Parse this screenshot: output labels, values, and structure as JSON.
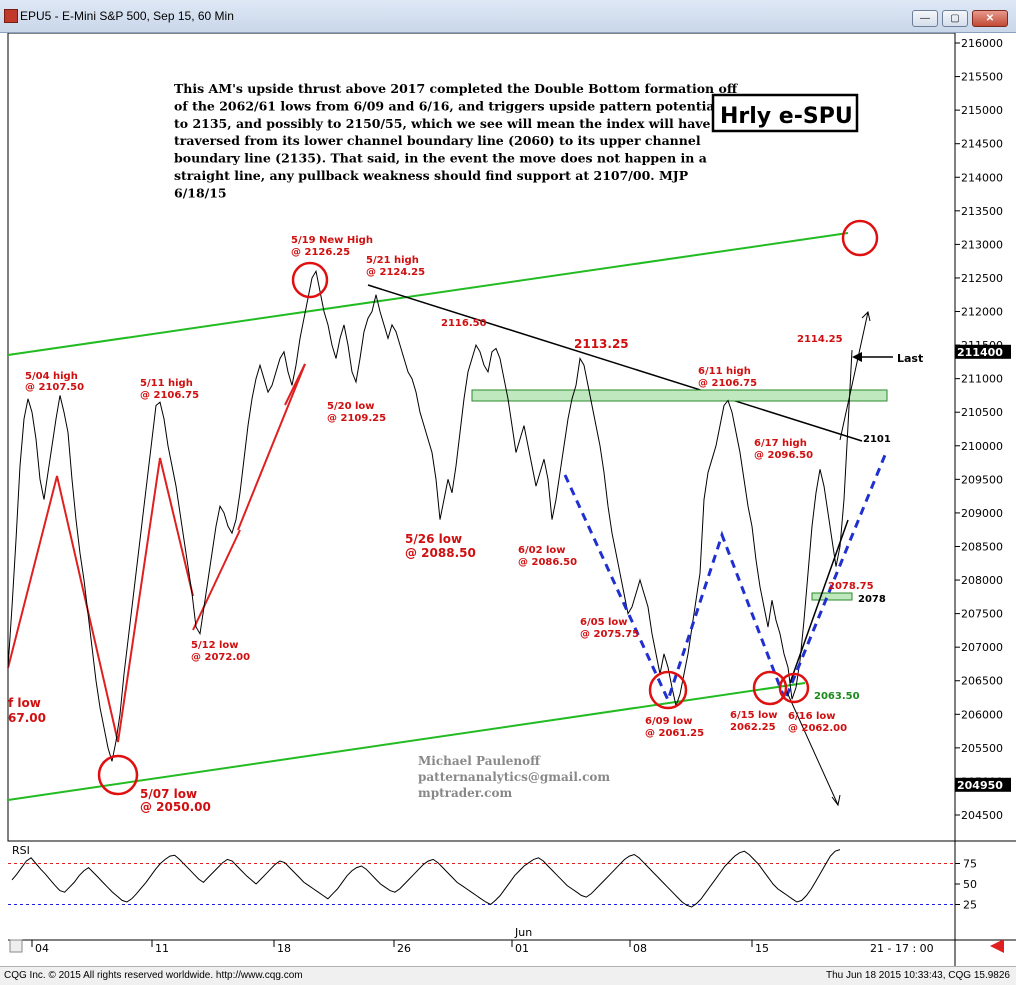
{
  "window": {
    "title": "EPU5 - E-Mini S&P 500, Sep 15, 60 Min",
    "minimize_icon": "minimize-icon",
    "restore_icon": "restore-icon",
    "close_icon": "close-icon"
  },
  "chart_data": {
    "type": "line",
    "title": "Hrly e-SPU",
    "xlabel": "",
    "ylabel": "",
    "ylim": [
      204100,
      216200
    ],
    "grid": false,
    "price_ticks": [
      "216000",
      "215500",
      "215000",
      "214500",
      "214000",
      "213500",
      "213000",
      "212500",
      "212000",
      "211500",
      "211000",
      "210500",
      "210000",
      "209500",
      "209000",
      "208500",
      "208000",
      "207500",
      "207000",
      "206500",
      "206000",
      "205500",
      "205000",
      "204500"
    ],
    "last_price_label": "211400",
    "left_price_label": "204950",
    "x_ticks": [
      "04",
      "11",
      "18",
      "26",
      "01",
      "08",
      "15"
    ],
    "x_month_label": "Jun",
    "x_right_label": "21 - 17 : 00",
    "series": [
      {
        "points": [
          [
            0,
            206700
          ],
          [
            4,
            207600
          ],
          [
            8,
            208600
          ],
          [
            12,
            209700
          ],
          [
            16,
            210400
          ],
          [
            20,
            210700
          ],
          [
            24,
            210500
          ],
          [
            28,
            210100
          ],
          [
            32,
            209500
          ],
          [
            36,
            209200
          ],
          [
            40,
            209600
          ],
          [
            44,
            210000
          ],
          [
            48,
            210400
          ],
          [
            52,
            210750
          ],
          [
            56,
            210500
          ],
          [
            60,
            210200
          ],
          [
            64,
            209500
          ],
          [
            68,
            208900
          ],
          [
            72,
            208400
          ],
          [
            76,
            208000
          ],
          [
            80,
            207500
          ],
          [
            84,
            207000
          ],
          [
            88,
            206500
          ],
          [
            92,
            206100
          ],
          [
            96,
            205800
          ],
          [
            100,
            205500
          ],
          [
            104,
            205300
          ],
          [
            108,
            205600
          ],
          [
            112,
            206000
          ],
          [
            116,
            206600
          ],
          [
            120,
            207100
          ],
          [
            124,
            207600
          ],
          [
            128,
            208100
          ],
          [
            132,
            208600
          ],
          [
            136,
            209100
          ],
          [
            140,
            209600
          ],
          [
            144,
            210100
          ],
          [
            148,
            210600
          ],
          [
            152,
            210650
          ],
          [
            156,
            210400
          ],
          [
            160,
            210000
          ],
          [
            164,
            209700
          ],
          [
            168,
            209400
          ],
          [
            172,
            209000
          ],
          [
            176,
            208600
          ],
          [
            180,
            208200
          ],
          [
            184,
            207800
          ],
          [
            188,
            207300
          ],
          [
            192,
            207200
          ],
          [
            196,
            207600
          ],
          [
            200,
            208000
          ],
          [
            204,
            208400
          ],
          [
            208,
            208800
          ],
          [
            212,
            209100
          ],
          [
            216,
            209000
          ],
          [
            220,
            208800
          ],
          [
            224,
            208700
          ],
          [
            228,
            208900
          ],
          [
            232,
            209300
          ],
          [
            236,
            209800
          ],
          [
            240,
            210300
          ],
          [
            244,
            210700
          ],
          [
            248,
            211000
          ],
          [
            252,
            211200
          ],
          [
            256,
            211000
          ],
          [
            260,
            210800
          ],
          [
            264,
            210900
          ],
          [
            268,
            211100
          ],
          [
            272,
            211300
          ],
          [
            276,
            211400
          ],
          [
            280,
            211100
          ],
          [
            284,
            210900
          ],
          [
            288,
            211200
          ],
          [
            292,
            211600
          ],
          [
            296,
            211900
          ],
          [
            300,
            212200
          ],
          [
            304,
            212500
          ],
          [
            308,
            212600
          ],
          [
            312,
            212300
          ],
          [
            316,
            212000
          ],
          [
            320,
            211800
          ],
          [
            324,
            211500
          ],
          [
            328,
            211300
          ],
          [
            332,
            211600
          ],
          [
            336,
            211800
          ],
          [
            340,
            211500
          ],
          [
            344,
            211100
          ],
          [
            348,
            210950
          ],
          [
            352,
            211300
          ],
          [
            356,
            211700
          ],
          [
            360,
            211900
          ],
          [
            364,
            212000
          ],
          [
            368,
            212250
          ],
          [
            372,
            212000
          ],
          [
            376,
            211800
          ],
          [
            380,
            211600
          ],
          [
            384,
            211800
          ],
          [
            388,
            211700
          ],
          [
            392,
            211500
          ],
          [
            396,
            211300
          ],
          [
            400,
            211100
          ],
          [
            404,
            211000
          ],
          [
            408,
            210800
          ],
          [
            412,
            210500
          ],
          [
            416,
            210300
          ],
          [
            420,
            210100
          ],
          [
            424,
            209900
          ],
          [
            428,
            209500
          ],
          [
            432,
            208900
          ],
          [
            436,
            209200
          ],
          [
            440,
            209500
          ],
          [
            444,
            209300
          ],
          [
            448,
            209700
          ],
          [
            452,
            210200
          ],
          [
            456,
            210700
          ],
          [
            460,
            211100
          ],
          [
            464,
            211300
          ],
          [
            468,
            211500
          ],
          [
            472,
            211400
          ],
          [
            476,
            211200
          ],
          [
            480,
            211100
          ],
          [
            484,
            211400
          ],
          [
            488,
            211450
          ],
          [
            492,
            211300
          ],
          [
            496,
            211000
          ],
          [
            500,
            210700
          ],
          [
            504,
            210300
          ],
          [
            508,
            209900
          ],
          [
            512,
            210100
          ],
          [
            516,
            210300
          ],
          [
            520,
            210000
          ],
          [
            524,
            209700
          ],
          [
            528,
            209400
          ],
          [
            532,
            209600
          ],
          [
            536,
            209800
          ],
          [
            540,
            209500
          ],
          [
            544,
            208900
          ],
          [
            548,
            209200
          ],
          [
            552,
            209600
          ],
          [
            556,
            210000
          ],
          [
            560,
            210400
          ],
          [
            564,
            210700
          ],
          [
            568,
            210900
          ],
          [
            572,
            211300
          ],
          [
            576,
            211200
          ],
          [
            580,
            210900
          ],
          [
            584,
            210600
          ],
          [
            588,
            210300
          ],
          [
            592,
            210000
          ],
          [
            596,
            209600
          ],
          [
            600,
            209100
          ],
          [
            604,
            208700
          ],
          [
            608,
            208400
          ],
          [
            612,
            208100
          ],
          [
            616,
            207800
          ],
          [
            620,
            207500
          ],
          [
            624,
            207600
          ],
          [
            628,
            207800
          ],
          [
            632,
            208000
          ],
          [
            636,
            207800
          ],
          [
            640,
            207600
          ],
          [
            644,
            207200
          ],
          [
            648,
            206900
          ],
          [
            652,
            206600
          ],
          [
            656,
            206900
          ],
          [
            660,
            206700
          ],
          [
            664,
            206400
          ],
          [
            668,
            206125
          ],
          [
            672,
            206300
          ],
          [
            676,
            206600
          ],
          [
            680,
            206900
          ],
          [
            684,
            207300
          ],
          [
            688,
            207700
          ],
          [
            692,
            208100
          ],
          [
            696,
            209200
          ],
          [
            700,
            209600
          ],
          [
            704,
            209800
          ],
          [
            708,
            210000
          ],
          [
            712,
            210300
          ],
          [
            716,
            210600
          ],
          [
            720,
            210675
          ],
          [
            724,
            210500
          ],
          [
            728,
            210200
          ],
          [
            732,
            209900
          ],
          [
            736,
            209500
          ],
          [
            740,
            209100
          ],
          [
            744,
            208800
          ],
          [
            748,
            208300
          ],
          [
            752,
            207900
          ],
          [
            756,
            207600
          ],
          [
            760,
            207300
          ],
          [
            764,
            207700
          ],
          [
            768,
            207400
          ],
          [
            772,
            207200
          ],
          [
            776,
            206900
          ],
          [
            780,
            206700
          ],
          [
            784,
            206225
          ],
          [
            788,
            206400
          ],
          [
            792,
            206800
          ],
          [
            796,
            207400
          ],
          [
            800,
            208100
          ],
          [
            804,
            208800
          ],
          [
            808,
            209300
          ],
          [
            812,
            209650
          ],
          [
            816,
            209400
          ],
          [
            820,
            209000
          ],
          [
            824,
            208600
          ],
          [
            828,
            208200
          ],
          [
            832,
            208500
          ],
          [
            836,
            209200
          ],
          [
            840,
            210300
          ],
          [
            844,
            211425
          ]
        ]
      }
    ],
    "annotations": {
      "commentary": "This AM's upside thrust above 2017 completed the Double Bottom formation off of the 2062/61 lows from 6/09 and 6/16, and triggers upside pattern potential to 2135, and possibly to 2150/55, which we see will mean the index will have traversed from its lower channel boundary line (2060) to its upper channel boundary line (2135). That said, in the event the move does not happen in a straight line, any pullback weakness should find support at 2107/00.  MJP 6/18/15",
      "labels": [
        "5/04 high",
        "@ 2107.50",
        "5/11 high",
        "@ 2106.75",
        "5/19 New High",
        "@ 2126.25",
        "5/21 high",
        "@ 2124.25",
        "2116.50",
        "5/20 low",
        "@ 2109.25",
        "5/12 low",
        "@ 2072.00",
        "5/07 low",
        "@ 2050.00",
        "f low",
        "67.00",
        "5/26 low",
        "@ 2088.50",
        "6/02 low",
        "@ 2086.50",
        "2113.25",
        "6/05 low",
        "@ 2075.75",
        "6/09 low",
        "@ 2061.25",
        "6/11 high",
        "@ 2106.75",
        "6/15 low",
        "2062.25",
        "6/16 low",
        "@ 2062.00",
        "6/17 high",
        "@ 2096.50",
        "2114.25",
        "2078.75",
        "2078",
        "2063.50",
        "2101",
        "Last"
      ],
      "author": [
        "Michael Paulenoff",
        "patternanalytics@gmail.com",
        "mptrader.com"
      ]
    },
    "rsi": {
      "label": "RSI",
      "ticks": [
        "75",
        "50",
        "25"
      ],
      "values": [
        55,
        62,
        70,
        78,
        82,
        75,
        68,
        62,
        55,
        48,
        42,
        40,
        46,
        52,
        60,
        66,
        70,
        64,
        58,
        52,
        46,
        40,
        35,
        30,
        28,
        32,
        38,
        45,
        52,
        60,
        68,
        75,
        80,
        84,
        85,
        80,
        74,
        68,
        62,
        56,
        52,
        58,
        64,
        70,
        76,
        80,
        78,
        72,
        66,
        60,
        55,
        50,
        56,
        62,
        68,
        74,
        78,
        76,
        70,
        64,
        58,
        52,
        48,
        44,
        40,
        36,
        32,
        38,
        44,
        52,
        60,
        66,
        70,
        72,
        68,
        62,
        56,
        50,
        46,
        42,
        40,
        44,
        50,
        56,
        62,
        68,
        74,
        78,
        80,
        76,
        70,
        64,
        58,
        52,
        48,
        44,
        40,
        36,
        32,
        28,
        25,
        30,
        36,
        44,
        52,
        60,
        66,
        72,
        76,
        80,
        82,
        78,
        72,
        66,
        60,
        54,
        48,
        44,
        40,
        36,
        34,
        38,
        44,
        50,
        56,
        62,
        68,
        74,
        80,
        84,
        86,
        82,
        76,
        70,
        64,
        58,
        52,
        46,
        40,
        34,
        28,
        24,
        22,
        26,
        32,
        40,
        48,
        56,
        64,
        72,
        78,
        84,
        88,
        90,
        86,
        80,
        74,
        66,
        58,
        50,
        44,
        40,
        36,
        32,
        28,
        30,
        36,
        44,
        54,
        64,
        74,
        84,
        90,
        92
      ]
    }
  },
  "status": {
    "copyright": "CQG Inc. © 2015 All rights reserved worldwide. http://www.cqg.com",
    "timestamp": "Thu Jun 18 2015 10:33:43, CQG 15.9826"
  }
}
